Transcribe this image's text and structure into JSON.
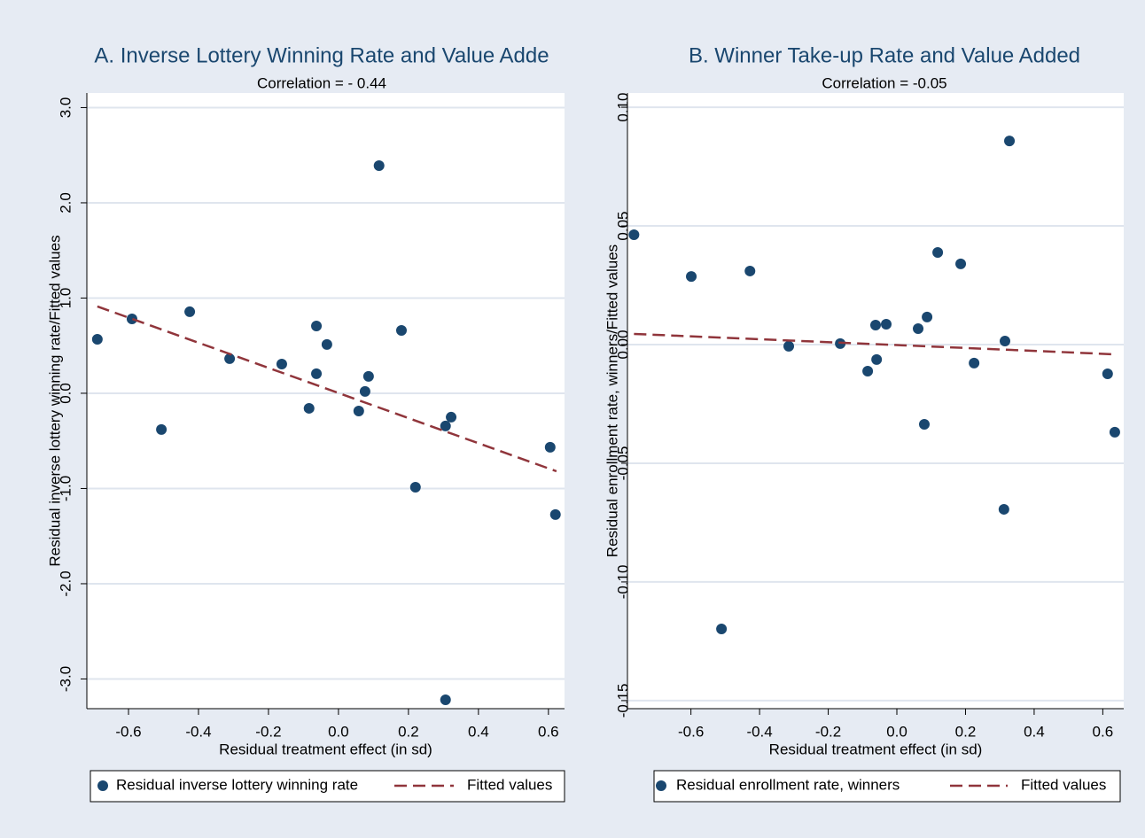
{
  "chart_data": [
    {
      "type": "scatter",
      "title": "A. Inverse Lottery Winning Rate and Value Adde",
      "subtitle": "Correlation = - 0.44",
      "x_label": "Residual treatment effect (in sd)",
      "y_label": "Residual inverse lottery winning rate/Fitted values",
      "xlim": [
        -0.719,
        0.646
      ],
      "ylim": [
        -3.312,
        3.153
      ],
      "xticks": [
        -0.6,
        -0.4,
        -0.2,
        {
          "value": 0,
          "label": "0.0"
        },
        0.2,
        0.4,
        0.6
      ],
      "yticks": [
        {
          "value": 3,
          "label": "3.0"
        },
        {
          "value": 2,
          "label": "2.0"
        },
        {
          "value": 1,
          "label": "1.0"
        },
        {
          "value": 0,
          "label": "0.0"
        },
        {
          "value": -1,
          "label": "-1.0"
        },
        {
          "value": -2,
          "label": "-2.0"
        },
        {
          "value": -3,
          "label": "-3.0"
        }
      ],
      "grid": true,
      "series": [
        {
          "name": "Residual inverse lottery winning rate",
          "color": "#1a476f",
          "mode": "markers",
          "x": [
            -0.689,
            -0.59,
            -0.506,
            -0.425,
            -0.311,
            -0.162,
            -0.084,
            -0.063,
            -0.063,
            -0.033,
            0.116,
            0.058,
            0.076,
            0.086,
            0.18,
            0.22,
            0.306,
            0.322,
            0.306,
            0.605,
            0.62
          ],
          "values": [
            0.567,
            0.781,
            -0.381,
            0.856,
            0.363,
            0.307,
            -0.158,
            0.707,
            0.205,
            0.512,
            2.39,
            -0.186,
            0.019,
            0.177,
            0.66,
            -0.986,
            -0.344,
            -0.251,
            -3.219,
            -0.567,
            -1.274
          ]
        },
        {
          "name": "Fitted values",
          "color": "#90353b",
          "mode": "dashed-line",
          "x": [
            -0.689,
            0.623
          ],
          "values": [
            0.912,
            -0.819
          ]
        }
      ]
    },
    {
      "type": "scatter",
      "title": "B. Winner Take-up Rate and Value Added",
      "subtitle": "Correlation = -0.05",
      "x_label": "Residual treatment effect (in sd)",
      "y_label": "Residual enrollment rate, winners/Fitted values",
      "xlim": [
        -0.785,
        0.661
      ],
      "ylim": [
        -0.1534,
        0.106
      ],
      "xticks": [
        -0.6,
        -0.4,
        -0.2,
        {
          "value": 0,
          "label": "0.0"
        },
        0.2,
        0.4,
        0.6
      ],
      "yticks": [
        {
          "value": 0.1,
          "label": "0.10"
        },
        0.05,
        {
          "value": 0,
          "label": "0.00"
        },
        -0.05,
        {
          "value": -0.1,
          "label": "-0.10"
        },
        -0.15
      ],
      "grid": true,
      "series": [
        {
          "name": "Residual enrollment rate, winners",
          "color": "#1a476f",
          "mode": "markers",
          "x": [
            -0.766,
            -0.599,
            -0.428,
            -0.511,
            -0.315,
            -0.165,
            -0.085,
            -0.062,
            -0.059,
            -0.031,
            0.062,
            0.08,
            0.088,
            0.119,
            0.186,
            0.225,
            0.312,
            0.315,
            0.328,
            0.614,
            0.635
          ],
          "values": [
            0.0463,
            0.0287,
            0.031,
            -0.1198,
            -0.0007,
            0.0004,
            -0.0112,
            0.0082,
            -0.0063,
            0.0086,
            0.0067,
            -0.0336,
            0.0116,
            0.0388,
            0.034,
            -0.0078,
            -0.0694,
            0.0015,
            0.0858,
            -0.0123,
            -0.0369
          ]
        },
        {
          "name": "Fitted values",
          "color": "#90353b",
          "mode": "dashed-line",
          "x": [
            -0.766,
            0.635
          ],
          "values": [
            0.0045,
            -0.0041
          ]
        }
      ]
    }
  ]
}
